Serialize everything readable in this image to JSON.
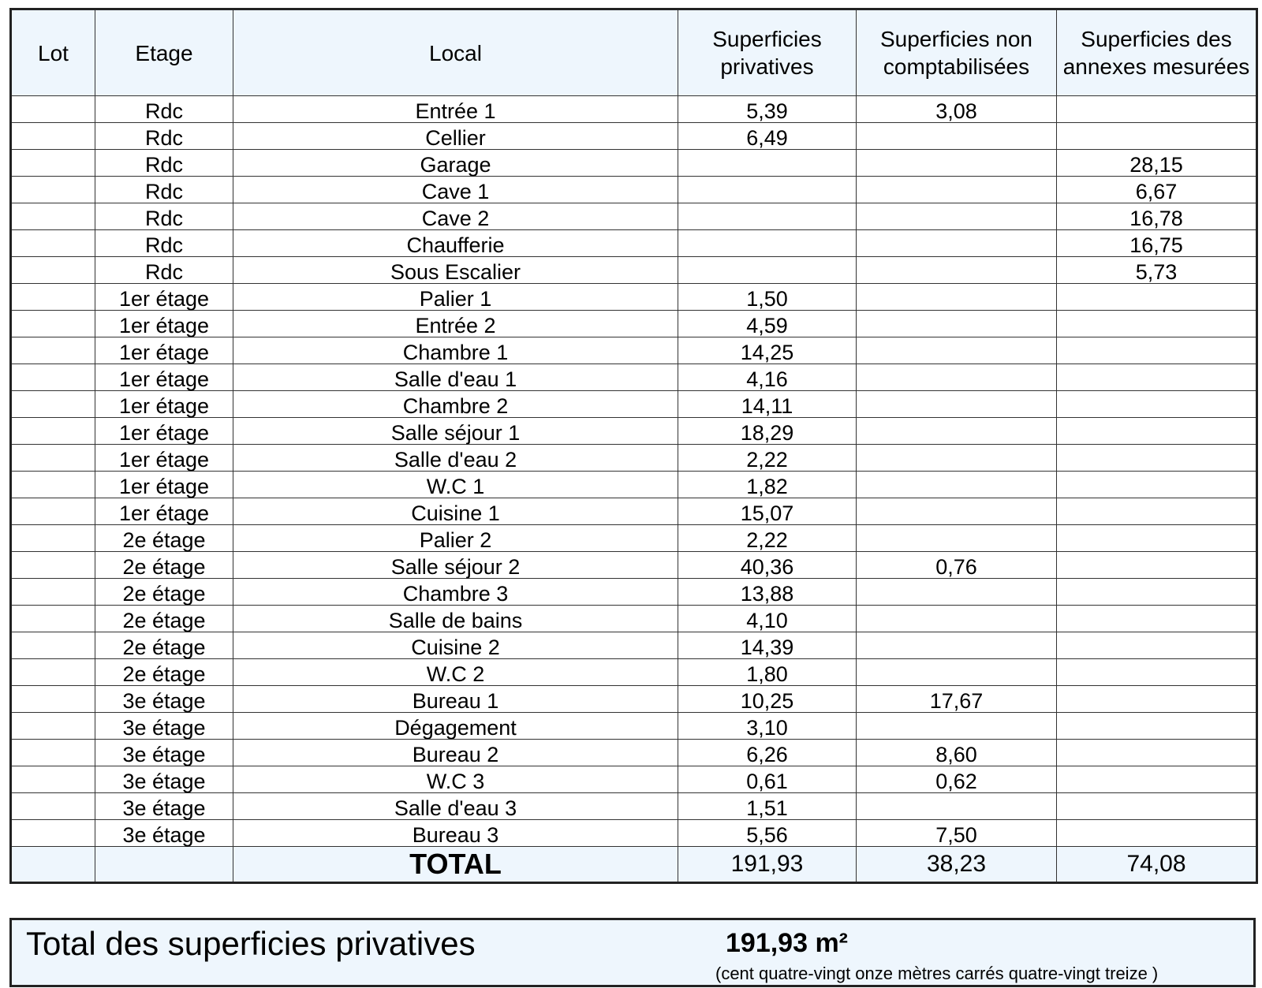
{
  "headers": [
    "Lot",
    "Etage",
    "Local",
    "Superficies privatives",
    "Superficies non comptabilisées",
    "Superficies des annexes mesurées"
  ],
  "rows": [
    [
      "",
      "Rdc",
      "Entrée 1",
      "5,39",
      "3,08",
      ""
    ],
    [
      "",
      "Rdc",
      "Cellier",
      "6,49",
      "",
      ""
    ],
    [
      "",
      "Rdc",
      "Garage",
      "",
      "",
      "28,15"
    ],
    [
      "",
      "Rdc",
      "Cave 1",
      "",
      "",
      "6,67"
    ],
    [
      "",
      "Rdc",
      "Cave 2",
      "",
      "",
      "16,78"
    ],
    [
      "",
      "Rdc",
      "Chaufferie",
      "",
      "",
      "16,75"
    ],
    [
      "",
      "Rdc",
      "Sous Escalier",
      "",
      "",
      "5,73"
    ],
    [
      "",
      "1er étage",
      "Palier 1",
      "1,50",
      "",
      ""
    ],
    [
      "",
      "1er étage",
      "Entrée 2",
      "4,59",
      "",
      ""
    ],
    [
      "",
      "1er étage",
      "Chambre 1",
      "14,25",
      "",
      ""
    ],
    [
      "",
      "1er étage",
      "Salle d'eau 1",
      "4,16",
      "",
      ""
    ],
    [
      "",
      "1er étage",
      "Chambre 2",
      "14,11",
      "",
      ""
    ],
    [
      "",
      "1er étage",
      "Salle séjour 1",
      "18,29",
      "",
      ""
    ],
    [
      "",
      "1er étage",
      "Salle d'eau 2",
      "2,22",
      "",
      ""
    ],
    [
      "",
      "1er étage",
      "W.C 1",
      "1,82",
      "",
      ""
    ],
    [
      "",
      "1er étage",
      "Cuisine 1",
      "15,07",
      "",
      ""
    ],
    [
      "",
      "2e étage",
      "Palier 2",
      "2,22",
      "",
      ""
    ],
    [
      "",
      "2e étage",
      "Salle séjour 2",
      "40,36",
      "0,76",
      ""
    ],
    [
      "",
      "2e étage",
      "Chambre 3",
      "13,88",
      "",
      ""
    ],
    [
      "",
      "2e étage",
      "Salle de bains",
      "4,10",
      "",
      ""
    ],
    [
      "",
      "2e étage",
      "Cuisine 2",
      "14,39",
      "",
      ""
    ],
    [
      "",
      "2e étage",
      "W.C 2",
      "1,80",
      "",
      ""
    ],
    [
      "",
      "3e étage",
      "Bureau 1",
      "10,25",
      "17,67",
      ""
    ],
    [
      "",
      "3e étage",
      "Dégagement",
      "3,10",
      "",
      ""
    ],
    [
      "",
      "3e étage",
      "Bureau 2",
      "6,26",
      "8,60",
      ""
    ],
    [
      "",
      "3e étage",
      "W.C 3",
      "0,61",
      "0,62",
      ""
    ],
    [
      "",
      "3e étage",
      "Salle d'eau 3",
      "1,51",
      "",
      ""
    ],
    [
      "",
      "3e étage",
      "Bureau 3",
      "5,56",
      "7,50",
      ""
    ]
  ],
  "total": {
    "label": "TOTAL",
    "privatives": "191,93",
    "non_comptabilisees": "38,23",
    "annexes": "74,08"
  },
  "summary": {
    "label": "Total des superficies privatives",
    "value": "191,93 m²",
    "words": "(cent quatre-vingt onze mètres carrés quatre-vingt treize  )"
  }
}
